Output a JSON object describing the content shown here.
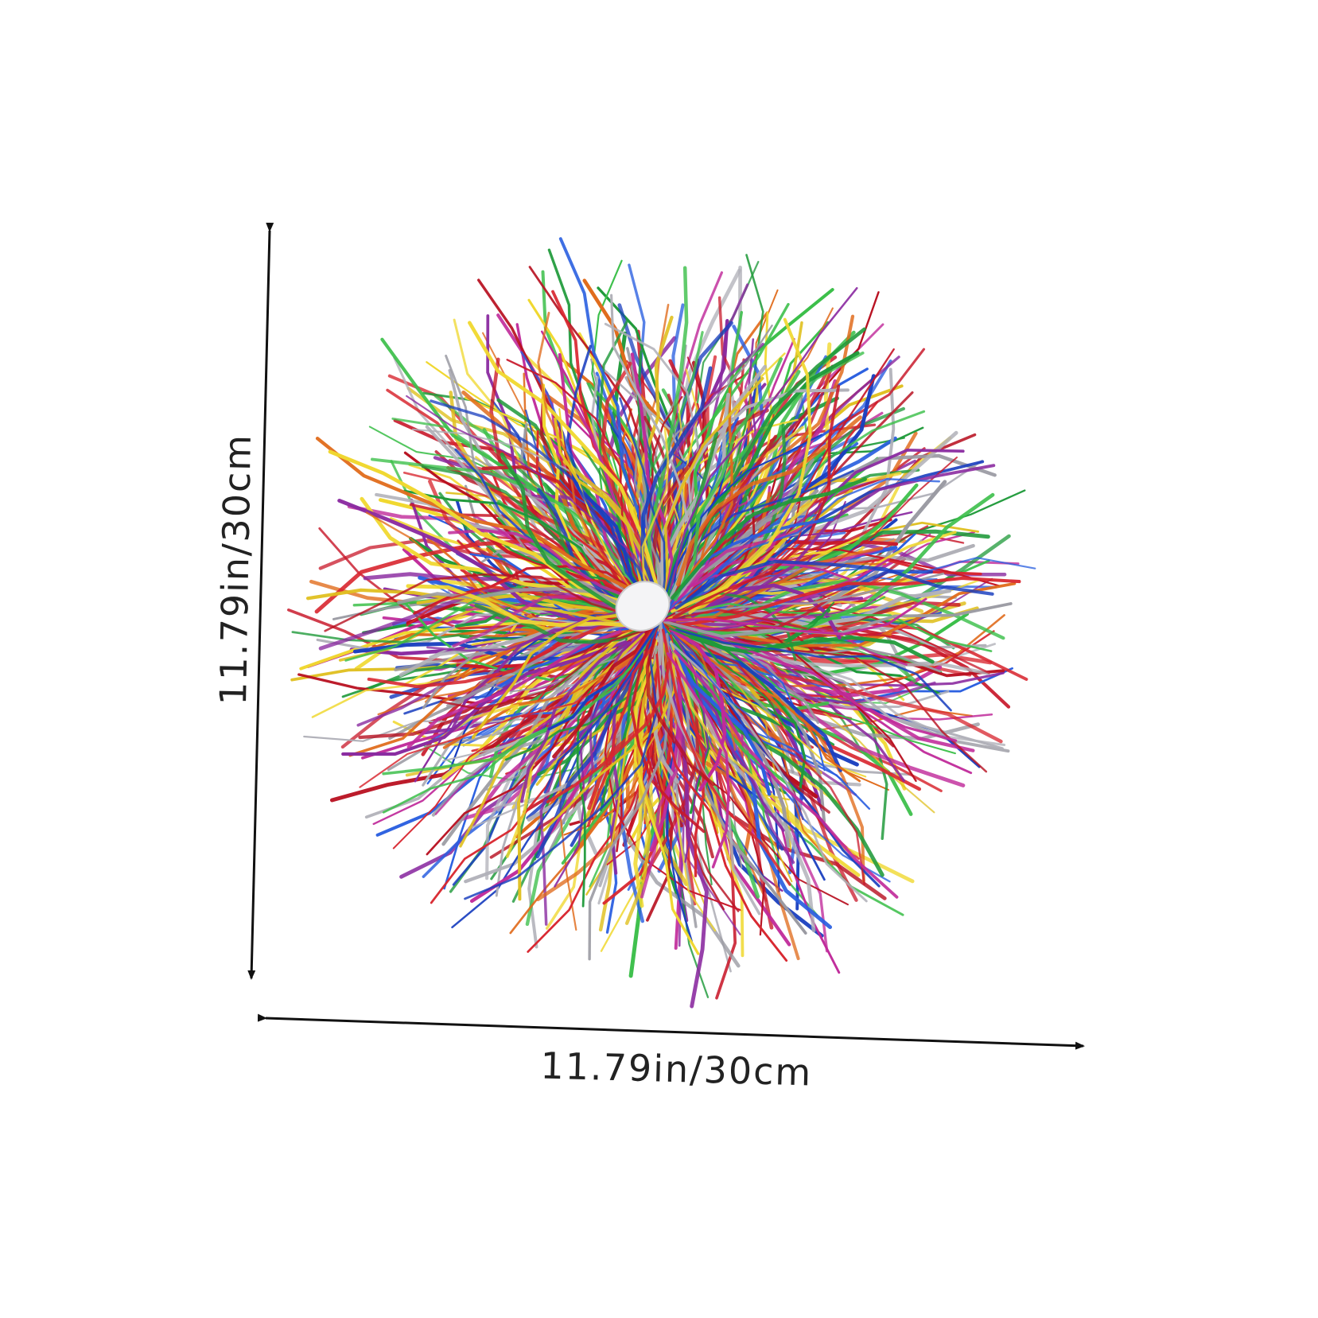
{
  "dimensions": {
    "height_label": "11.79in/30cm",
    "width_label": "11.79in/30cm"
  }
}
